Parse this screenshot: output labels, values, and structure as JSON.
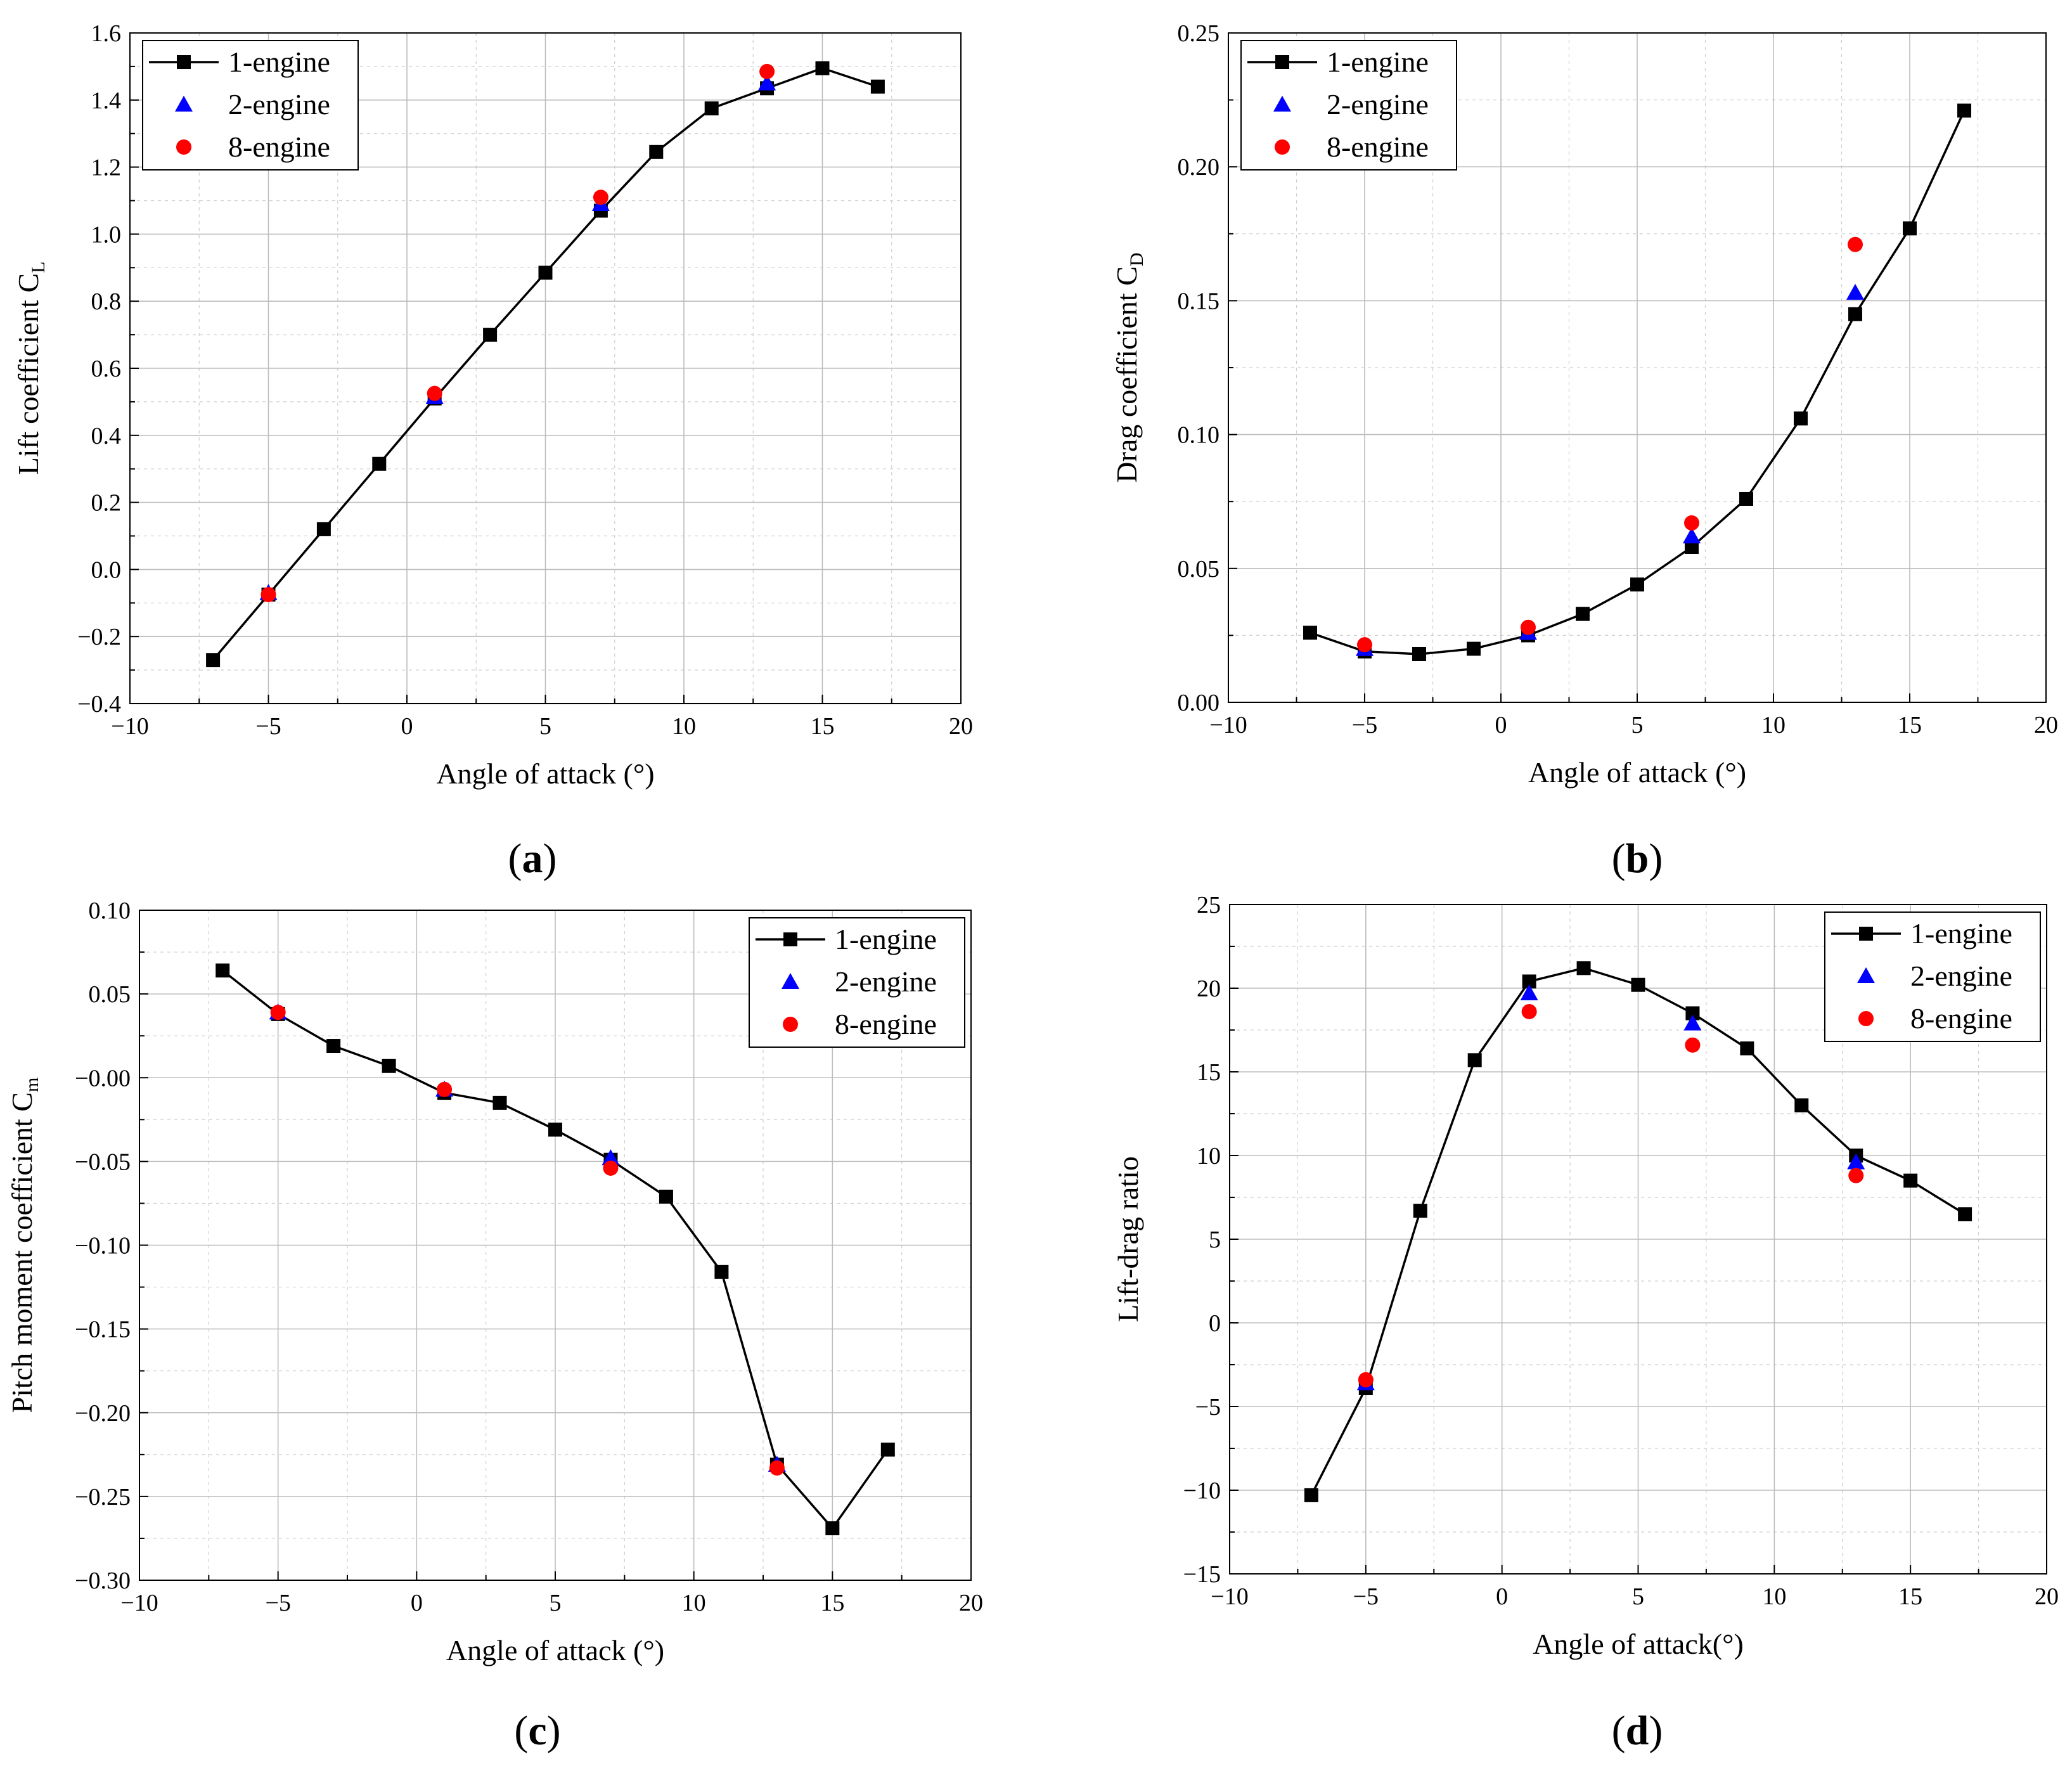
{
  "chart_data": [
    {
      "type": "scatter",
      "panel_label": "a",
      "xlabel": "Angle of attack (°)",
      "ylabel": "Lift coefficient C",
      "ylabel_sub": "L",
      "xlim": [
        -10,
        20
      ],
      "ylim": [
        -0.4,
        1.6
      ],
      "xticks": [
        -10,
        -5,
        0,
        5,
        10,
        15,
        20
      ],
      "yticks": [
        -0.4,
        -0.2,
        0.0,
        0.2,
        0.4,
        0.6,
        0.8,
        1.0,
        1.2,
        1.4,
        1.6
      ],
      "xtick_labels": [
        "−10",
        "−5",
        "0",
        "5",
        "10",
        "15",
        "20"
      ],
      "ytick_labels": [
        "−0.4",
        "−0.2",
        "0.0",
        "0.2",
        "0.4",
        "0.6",
        "0.8",
        "1.0",
        "1.2",
        "1.4",
        "1.6"
      ],
      "legend_position": "top-left",
      "grid": true,
      "series": [
        {
          "name": "1-engine",
          "marker": "square",
          "color": "#000000",
          "line": true,
          "x": [
            -7,
            -5,
            -3,
            -1,
            1,
            3,
            5,
            7,
            9,
            11,
            13,
            15,
            17
          ],
          "y": [
            -0.27,
            -0.075,
            0.12,
            0.315,
            0.51,
            0.7,
            0.885,
            1.07,
            1.245,
            1.375,
            1.435,
            1.495,
            1.44
          ]
        },
        {
          "name": "2-engine",
          "marker": "triangle",
          "color": "#0000ff",
          "line": false,
          "x": [
            -5,
            1,
            7,
            13
          ],
          "y": [
            -0.07,
            0.515,
            1.09,
            1.45
          ]
        },
        {
          "name": "8-engine",
          "marker": "circle",
          "color": "#ff0000",
          "line": false,
          "x": [
            -5,
            1,
            7,
            13
          ],
          "y": [
            -0.075,
            0.525,
            1.11,
            1.485
          ]
        }
      ]
    },
    {
      "type": "scatter",
      "panel_label": "b",
      "xlabel": "Angle of attack (°)",
      "ylabel": "Drag coefficient C",
      "ylabel_sub": "D",
      "xlim": [
        -10,
        20
      ],
      "ylim": [
        0.0,
        0.25
      ],
      "xticks": [
        -10,
        -5,
        0,
        5,
        10,
        15,
        20
      ],
      "yticks": [
        0.0,
        0.05,
        0.1,
        0.15,
        0.2,
        0.25
      ],
      "xtick_labels": [
        "−10",
        "−5",
        "0",
        "5",
        "10",
        "15",
        "20"
      ],
      "ytick_labels": [
        "0.00",
        "0.05",
        "0.10",
        "0.15",
        "0.20",
        "0.25"
      ],
      "legend_position": "top-left",
      "grid": true,
      "series": [
        {
          "name": "1-engine",
          "marker": "square",
          "color": "#000000",
          "line": true,
          "x": [
            -7,
            -5,
            -3,
            -1,
            1,
            3,
            5,
            7,
            9,
            11,
            13,
            15,
            17
          ],
          "y": [
            0.026,
            0.019,
            0.018,
            0.02,
            0.025,
            0.033,
            0.044,
            0.058,
            0.076,
            0.106,
            0.145,
            0.177,
            0.221
          ]
        },
        {
          "name": "2-engine",
          "marker": "triangle",
          "color": "#0000ff",
          "line": false,
          "x": [
            -5,
            1,
            7,
            13
          ],
          "y": [
            0.02,
            0.026,
            0.062,
            0.153
          ]
        },
        {
          "name": "8-engine",
          "marker": "circle",
          "color": "#ff0000",
          "line": false,
          "x": [
            -5,
            1,
            7,
            13
          ],
          "y": [
            0.0215,
            0.028,
            0.067,
            0.171
          ]
        }
      ]
    },
    {
      "type": "scatter",
      "panel_label": "c",
      "xlabel": "Angle of attack (°)",
      "ylabel": "Pitch moment coefficient C",
      "ylabel_sub": "m",
      "xlim": [
        -10,
        20
      ],
      "ylim": [
        -0.3,
        0.1
      ],
      "xticks": [
        -10,
        -5,
        0,
        5,
        10,
        15,
        20
      ],
      "yticks": [
        -0.3,
        -0.25,
        -0.2,
        -0.15,
        -0.1,
        -0.05,
        0.0,
        0.05,
        0.1
      ],
      "xtick_labels": [
        "−10",
        "−5",
        "0",
        "5",
        "10",
        "15",
        "20"
      ],
      "ytick_labels": [
        "−0.30",
        "−0.25",
        "−0.20",
        "−0.15",
        "−0.10",
        "−0.05",
        "−0.00",
        "0.05",
        "0.10"
      ],
      "legend_position": "top-right",
      "grid": true,
      "series": [
        {
          "name": "1-engine",
          "marker": "square",
          "color": "#000000",
          "line": true,
          "x": [
            -7,
            -5,
            -3,
            -1,
            1,
            3,
            5,
            7,
            9,
            11,
            13,
            15,
            17
          ],
          "y": [
            0.064,
            0.038,
            0.019,
            0.007,
            -0.009,
            -0.015,
            -0.031,
            -0.049,
            -0.071,
            -0.116,
            -0.231,
            -0.269,
            -0.222
          ]
        },
        {
          "name": "2-engine",
          "marker": "triangle",
          "color": "#0000ff",
          "line": false,
          "x": [
            -5,
            1,
            7,
            13
          ],
          "y": [
            0.039,
            -0.007,
            -0.048,
            -0.231
          ]
        },
        {
          "name": "8-engine",
          "marker": "circle",
          "color": "#ff0000",
          "line": false,
          "x": [
            -5,
            1,
            7,
            13
          ],
          "y": [
            0.039,
            -0.007,
            -0.054,
            -0.233
          ]
        }
      ]
    },
    {
      "type": "scatter",
      "panel_label": "d",
      "xlabel": "Angle of attack(°)",
      "ylabel": "Lift-drag ratio",
      "ylabel_sub": "",
      "xlim": [
        -10,
        20
      ],
      "ylim": [
        -15,
        25
      ],
      "xticks": [
        -10,
        -5,
        0,
        5,
        10,
        15,
        20
      ],
      "yticks": [
        -15,
        -10,
        -5,
        0,
        5,
        10,
        15,
        20,
        25
      ],
      "xtick_labels": [
        "−10",
        "−5",
        "0",
        "5",
        "10",
        "15",
        "20"
      ],
      "ytick_labels": [
        "−15",
        "−10",
        "−5",
        "0",
        "5",
        "10",
        "15",
        "20",
        "25"
      ],
      "legend_position": "top-right",
      "grid": true,
      "series": [
        {
          "name": "1-engine",
          "marker": "square",
          "color": "#000000",
          "line": true,
          "x": [
            -7,
            -5,
            -3,
            -1,
            1,
            3,
            5,
            7,
            9,
            11,
            13,
            15,
            17
          ],
          "y": [
            -10.3,
            -3.9,
            6.7,
            15.7,
            20.4,
            21.2,
            20.2,
            18.5,
            16.4,
            13.0,
            10.0,
            8.5,
            6.5
          ]
        },
        {
          "name": "2-engine",
          "marker": "triangle",
          "color": "#0000ff",
          "line": false,
          "x": [
            -5,
            1,
            7,
            13
          ],
          "y": [
            -3.6,
            19.7,
            17.9,
            9.6
          ]
        },
        {
          "name": "8-engine",
          "marker": "circle",
          "color": "#ff0000",
          "line": false,
          "x": [
            -5,
            1,
            7,
            13
          ],
          "y": [
            -3.4,
            18.6,
            16.6,
            8.8
          ]
        }
      ]
    }
  ]
}
